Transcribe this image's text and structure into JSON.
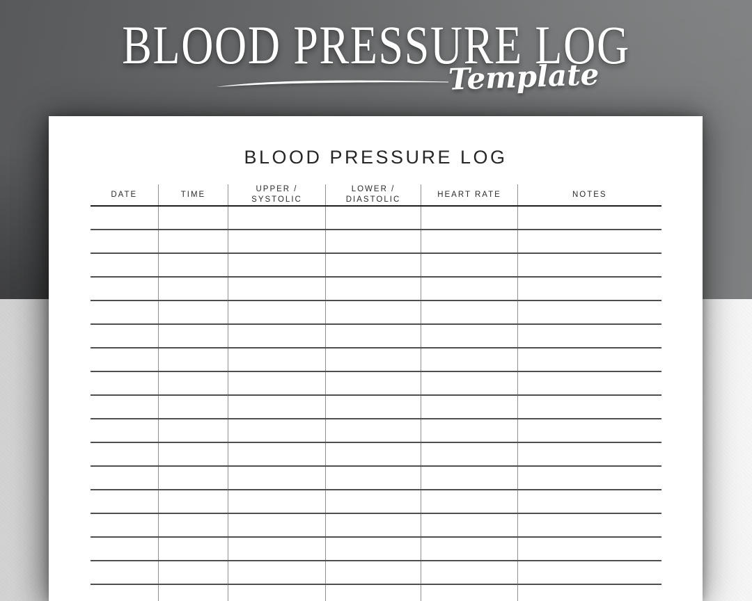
{
  "hero": {
    "title": "BLOOD PRESSURE LOG",
    "subtitle": "Template"
  },
  "sheet": {
    "title": "BLOOD PRESSURE LOG",
    "table": {
      "columns": [
        {
          "line1": "DATE",
          "line2": ""
        },
        {
          "line1": "TIME",
          "line2": ""
        },
        {
          "line1": "UPPER /",
          "line2": "SYSTOLIC"
        },
        {
          "line1": "LOWER /",
          "line2": "DIASTOLIC"
        },
        {
          "line1": "HEART RATE",
          "line2": ""
        },
        {
          "line1": "NOTES",
          "line2": ""
        }
      ],
      "visible_empty_rows": 17
    }
  },
  "colors": {
    "paper": "#ffffff",
    "ink": "#262626",
    "header_rule": "#1c1c1c",
    "row_rule": "#4e4e4e",
    "column_rule": "#909090",
    "backdrop_gray_dark": "#58595b",
    "backdrop_gray_light": "#7e8081",
    "backdrop_wall_left": "#d2d2d2",
    "backdrop_wall_right": "#f6f6f6",
    "hero_text": "#ffffff"
  }
}
